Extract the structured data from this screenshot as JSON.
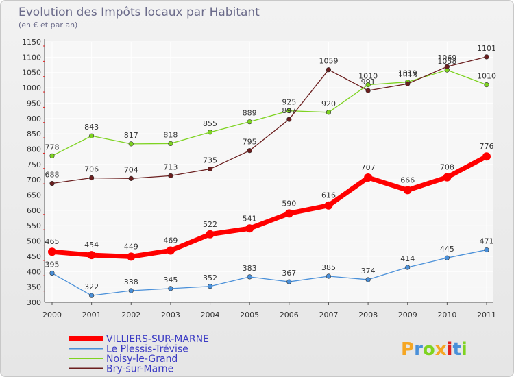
{
  "chart_data": {
    "type": "line",
    "title": "Evolution des Impôts locaux par Habitant",
    "subtitle": "(en € et par an)",
    "x": [
      "2000",
      "2001",
      "2002",
      "2003",
      "2004",
      "2005",
      "2006",
      "2007",
      "2008",
      "2009",
      "2010",
      "2011"
    ],
    "y_ticks": [
      "300",
      "350",
      "400",
      "450",
      "500",
      "550",
      "600",
      "650",
      "700",
      "750",
      "800",
      "850",
      "900",
      "950",
      "1000",
      "1050",
      "1100",
      "1150"
    ],
    "ylim": [
      300,
      1150
    ],
    "grid": true,
    "legend_position": "bottom-left",
    "series": [
      {
        "name": "VILLIERS-SUR-MARNE",
        "color": "#ff0000",
        "values": [
          465,
          454,
          449,
          469,
          522,
          541,
          590,
          616,
          707,
          666,
          708,
          776
        ],
        "labels": [
          "465",
          "454",
          "449",
          "469",
          "522",
          "541",
          "590",
          "616",
          "707",
          "666",
          "708",
          "776"
        ]
      },
      {
        "name": "Le Plessis-Trévise",
        "color": "#4a90d9",
        "values": [
          395,
          322,
          338,
          345,
          352,
          383,
          367,
          385,
          374,
          414,
          445,
          471
        ],
        "labels": [
          "395",
          "322",
          "338",
          "345",
          "352",
          "383",
          "367",
          "385",
          "374",
          "414",
          "445",
          "471"
        ]
      },
      {
        "name": "Noisy-le-Grand",
        "color": "#7ed321",
        "values": [
          778,
          843,
          817,
          818,
          855,
          889,
          925,
          920,
          1010,
          1019,
          1058,
          1010
        ],
        "labels": [
          "778",
          "843",
          "817",
          "818",
          "855",
          "889",
          "925",
          "920",
          "1010",
          "1019",
          "1058",
          "1010"
        ]
      },
      {
        "name": "Bry-sur-Marne",
        "color": "#6b1f1f",
        "values": [
          688,
          706,
          704,
          713,
          735,
          795,
          897,
          1059,
          991,
          1013,
          1069,
          1101
        ],
        "labels": [
          "688",
          "706",
          "704",
          "713",
          "735",
          "795",
          "897",
          "1059",
          "991",
          "1013",
          "1069",
          "1101"
        ]
      }
    ]
  },
  "logo": {
    "text": "Proxiti",
    "colors": [
      "#f5a623",
      "#4a90d9",
      "#7ed321",
      "#f5a623",
      "#e02020",
      "#4a90d9",
      "#7ed321"
    ]
  }
}
